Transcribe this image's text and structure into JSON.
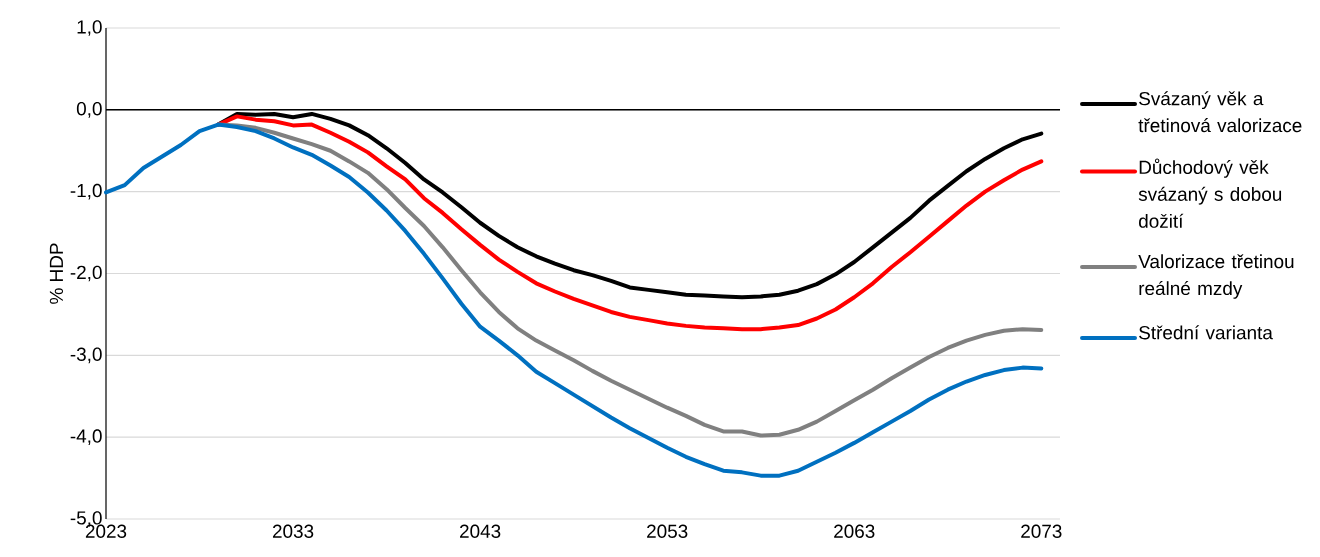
{
  "chart_data": {
    "type": "line",
    "ylabel": "% HDP",
    "x": [
      2023,
      2024,
      2025,
      2026,
      2027,
      2028,
      2029,
      2030,
      2031,
      2032,
      2033,
      2034,
      2035,
      2036,
      2037,
      2038,
      2039,
      2040,
      2041,
      2042,
      2043,
      2044,
      2045,
      2046,
      2047,
      2048,
      2049,
      2050,
      2051,
      2052,
      2053,
      2054,
      2055,
      2056,
      2057,
      2058,
      2059,
      2060,
      2061,
      2062,
      2063,
      2064,
      2065,
      2066,
      2067,
      2068,
      2069,
      2070,
      2071,
      2072,
      2073
    ],
    "series": [
      {
        "name": "Svázaný věk a třetinová valorizace",
        "color": "#000000",
        "values": [
          null,
          null,
          null,
          null,
          null,
          null,
          -0.18,
          -0.05,
          -0.06,
          -0.05,
          -0.09,
          -0.05,
          -0.11,
          -0.19,
          -0.31,
          -0.47,
          -0.65,
          -0.85,
          -1.01,
          -1.19,
          -1.38,
          -1.54,
          -1.68,
          -1.79,
          -1.88,
          -1.96,
          -2.02,
          -2.09,
          -2.17,
          -2.2,
          -2.23,
          -2.26,
          -2.27,
          -2.28,
          -2.29,
          -2.28,
          -2.26,
          -2.21,
          -2.13,
          -2.01,
          -1.86,
          -1.68,
          -1.5,
          -1.32,
          -1.11,
          -0.93,
          -0.75,
          -0.6,
          -0.47,
          -0.36,
          -0.29
        ]
      },
      {
        "name": "Důchodový věk svázaný s dobou dožití",
        "color": "#ff0000",
        "values": [
          null,
          null,
          null,
          null,
          null,
          null,
          -0.18,
          -0.08,
          -0.12,
          -0.14,
          -0.19,
          -0.18,
          -0.28,
          -0.39,
          -0.52,
          -0.69,
          -0.85,
          -1.08,
          -1.26,
          -1.46,
          -1.65,
          -1.83,
          -1.98,
          -2.12,
          -2.22,
          -2.31,
          -2.39,
          -2.47,
          -2.53,
          -2.57,
          -2.61,
          -2.64,
          -2.66,
          -2.67,
          -2.68,
          -2.68,
          -2.66,
          -2.63,
          -2.55,
          -2.44,
          -2.29,
          -2.12,
          -1.92,
          -1.74,
          -1.55,
          -1.36,
          -1.17,
          -1.0,
          -0.86,
          -0.73,
          -0.63
        ]
      },
      {
        "name": "Valorizace třetinou reálné mzdy",
        "color": "#808080",
        "values": [
          null,
          null,
          null,
          null,
          null,
          null,
          -0.18,
          -0.19,
          -0.22,
          -0.28,
          -0.35,
          -0.42,
          -0.5,
          -0.63,
          -0.77,
          -0.97,
          -1.2,
          -1.42,
          -1.68,
          -1.96,
          -2.23,
          -2.47,
          -2.67,
          -2.82,
          -2.94,
          -3.06,
          -3.19,
          -3.31,
          -3.42,
          -3.53,
          -3.64,
          -3.74,
          -3.85,
          -3.93,
          -3.93,
          -3.98,
          -3.97,
          -3.91,
          -3.81,
          -3.68,
          -3.55,
          -3.42,
          -3.28,
          -3.15,
          -3.02,
          -2.91,
          -2.82,
          -2.75,
          -2.7,
          -2.68,
          -2.69
        ]
      },
      {
        "name": "Střední varianta",
        "color": "#0070c0",
        "values": [
          -1.01,
          -0.92,
          -0.71,
          -0.57,
          -0.43,
          -0.26,
          -0.18,
          -0.21,
          -0.26,
          -0.35,
          -0.46,
          -0.55,
          -0.68,
          -0.82,
          -1.01,
          -1.23,
          -1.48,
          -1.76,
          -2.06,
          -2.37,
          -2.65,
          -2.82,
          -3.0,
          -3.2,
          -3.34,
          -3.48,
          -3.62,
          -3.76,
          -3.89,
          -4.01,
          -4.13,
          -4.24,
          -4.33,
          -4.41,
          -4.43,
          -4.47,
          -4.47,
          -4.41,
          -4.3,
          -4.19,
          -4.07,
          -3.94,
          -3.81,
          -3.68,
          -3.54,
          -3.42,
          -3.32,
          -3.24,
          -3.18,
          -3.15,
          -3.16
        ]
      }
    ],
    "xlim": [
      2023,
      2074
    ],
    "xticks": [
      2023,
      2033,
      2043,
      2053,
      2063,
      2073
    ],
    "ylim": [
      -5,
      1
    ],
    "yticks": [
      {
        "value": -5,
        "label": "-5,0"
      },
      {
        "value": -4,
        "label": "-4,0"
      },
      {
        "value": -3,
        "label": "-3,0"
      },
      {
        "value": -2,
        "label": "-2,0"
      },
      {
        "value": -1,
        "label": "-1,0"
      },
      {
        "value": 0,
        "label": "0,0"
      },
      {
        "value": 1,
        "label": "1,0"
      }
    ],
    "ref_lines": [
      {
        "axis": "y",
        "value": 0,
        "color": "#000000"
      }
    ],
    "grid": "y",
    "legend": "right",
    "marker": "none",
    "line_style": "solid"
  }
}
